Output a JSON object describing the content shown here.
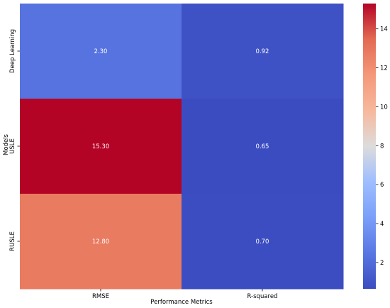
{
  "chart_data": {
    "type": "heatmap",
    "xlabel": "Performance Metrics",
    "ylabel": "Models",
    "columns": [
      "RMSE",
      "R-squared"
    ],
    "rows": [
      "Deep Learning",
      "USLE",
      "RUSLE"
    ],
    "values": [
      [
        2.3,
        0.92
      ],
      [
        15.3,
        0.65
      ],
      [
        12.8,
        0.7
      ]
    ],
    "value_labels": [
      [
        "2.30",
        "0.92"
      ],
      [
        "15.30",
        "0.65"
      ],
      [
        "12.80",
        "0.70"
      ]
    ],
    "colormap": "coolwarm",
    "vmin": 0.65,
    "vmax": 15.3,
    "colorbar_ticks": [
      "2",
      "4",
      "6",
      "8",
      "10",
      "12",
      "14"
    ],
    "colorbar_tick_values": [
      2,
      4,
      6,
      8,
      10,
      12,
      14
    ]
  }
}
